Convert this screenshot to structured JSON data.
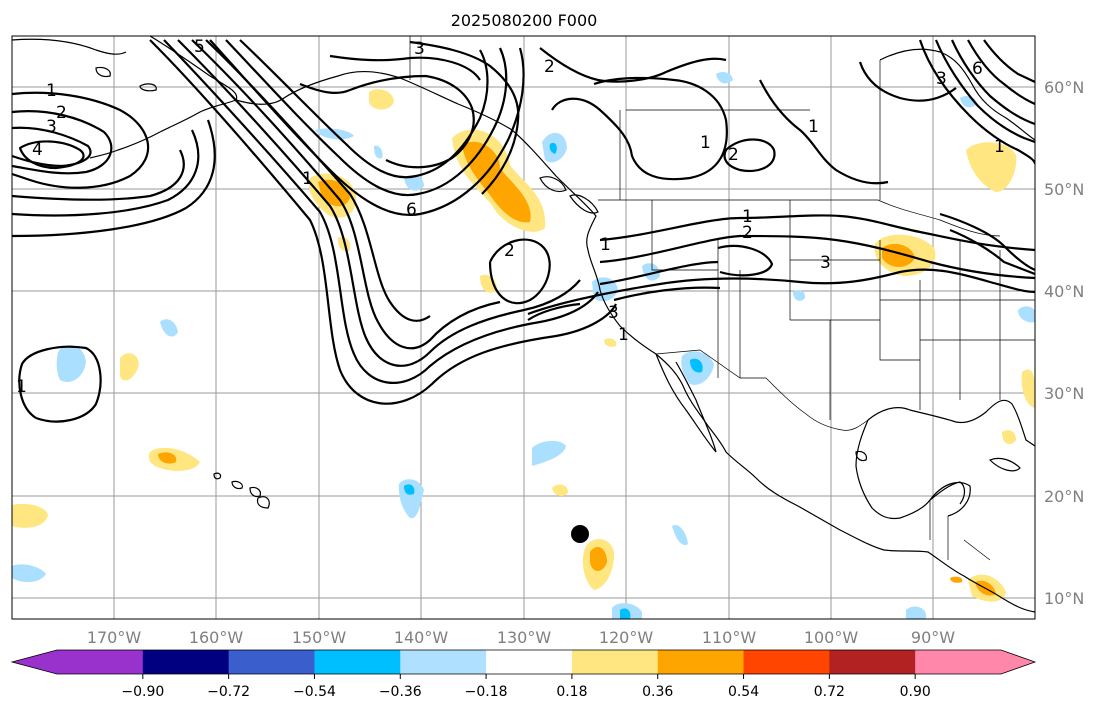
{
  "title": "2025080200 F000",
  "map": {
    "lat_labels": [
      "60°N",
      "50°N",
      "40°N",
      "30°N",
      "20°N",
      "10°N"
    ],
    "lon_labels": [
      "170°W",
      "160°W",
      "150°W",
      "140°W",
      "130°W",
      "120°W",
      "110°W",
      "100°W",
      "90°W"
    ],
    "contour_labels": [
      "1",
      "2",
      "3",
      "4",
      "5",
      "6",
      "3",
      "1",
      "2",
      "1",
      "2",
      "3",
      "1",
      "3",
      "6",
      "1",
      "1",
      "2",
      "1",
      "3",
      "1",
      "2",
      "1"
    ],
    "colors": {
      "strong_negative": "#00bfff",
      "weak_negative": "#aadfff",
      "weak_positive": "#ffe680",
      "strong_positive": "#ffa500"
    },
    "grid": true,
    "marker": "storm-center-dot"
  },
  "colorbar": {
    "ticks": [
      "−0.90",
      "−0.72",
      "−0.54",
      "−0.36",
      "−0.18",
      "0.18",
      "0.36",
      "0.54",
      "0.72",
      "0.90"
    ],
    "colors": [
      "#9932cc",
      "#000080",
      "#3a5fcd",
      "#00bfff",
      "#b0e0ff",
      "#ffffff",
      "#ffe680",
      "#ffa500",
      "#ff4500",
      "#b22222",
      "#ff88aa"
    ],
    "extend": "both"
  }
}
